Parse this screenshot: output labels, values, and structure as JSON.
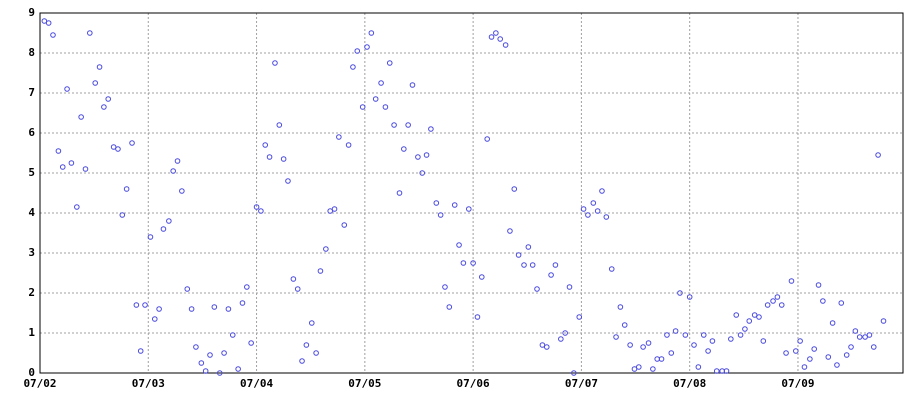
{
  "chart_data": {
    "type": "scatter",
    "color": "#4a4ae0",
    "grid": true,
    "xlim": [
      2,
      9.97
    ],
    "ylim": [
      0,
      9
    ],
    "xticks": [
      {
        "value": 2,
        "label": "07/02"
      },
      {
        "value": 3,
        "label": "07/03"
      },
      {
        "value": 4,
        "label": "07/04"
      },
      {
        "value": 5,
        "label": "07/05"
      },
      {
        "value": 6,
        "label": "07/06"
      },
      {
        "value": 7,
        "label": "07/07"
      },
      {
        "value": 8,
        "label": "07/08"
      },
      {
        "value": 9,
        "label": "07/09"
      }
    ],
    "yticks": [
      0,
      1,
      2,
      3,
      4,
      5,
      6,
      7,
      8,
      9
    ],
    "x": [
      2.04,
      2.08,
      2.12,
      2.17,
      2.21,
      2.25,
      2.29,
      2.34,
      2.38,
      2.42,
      2.46,
      2.51,
      2.55,
      2.59,
      2.63,
      2.68,
      2.72,
      2.76,
      2.8,
      2.85,
      2.89,
      2.93,
      2.97,
      3.02,
      3.06,
      3.1,
      3.14,
      3.19,
      3.23,
      3.27,
      3.31,
      3.36,
      3.4,
      3.44,
      3.49,
      3.53,
      3.57,
      3.61,
      3.66,
      3.7,
      3.74,
      3.78,
      3.83,
      3.87,
      3.91,
      3.95,
      4.0,
      4.04,
      4.08,
      4.12,
      4.17,
      4.21,
      4.25,
      4.29,
      4.34,
      4.38,
      4.42,
      4.46,
      4.51,
      4.55,
      4.59,
      4.64,
      4.68,
      4.72,
      4.76,
      4.81,
      4.85,
      4.89,
      4.93,
      4.98,
      5.02,
      5.06,
      5.1,
      5.15,
      5.19,
      5.23,
      5.27,
      5.32,
      5.36,
      5.4,
      5.44,
      5.49,
      5.53,
      5.57,
      5.61,
      5.66,
      5.7,
      5.74,
      5.78,
      5.83,
      5.87,
      5.91,
      5.96,
      6.0,
      6.04,
      6.08,
      6.13,
      6.17,
      6.21,
      6.25,
      6.3,
      6.34,
      6.38,
      6.42,
      6.47,
      6.51,
      6.55,
      6.59,
      6.64,
      6.68,
      6.72,
      6.76,
      6.81,
      6.85,
      6.89,
      6.93,
      6.98,
      7.02,
      7.06,
      7.11,
      7.15,
      7.19,
      7.23,
      7.28,
      7.32,
      7.36,
      7.4,
      7.45,
      7.49,
      7.53,
      7.57,
      7.62,
      7.66,
      7.7,
      7.74,
      7.79,
      7.83,
      7.87,
      7.91,
      7.96,
      8.0,
      8.04,
      8.08,
      8.13,
      8.17,
      8.21,
      8.25,
      8.3,
      8.34,
      8.38,
      8.43,
      8.47,
      8.51,
      8.55,
      8.6,
      8.64,
      8.68,
      8.72,
      8.77,
      8.81,
      8.85,
      8.89,
      8.94,
      8.98,
      9.02,
      9.06,
      9.11,
      9.15,
      9.19,
      9.23,
      9.28,
      9.32,
      9.36,
      9.4,
      9.45,
      9.49,
      9.53,
      9.57,
      9.62,
      9.66,
      9.7,
      9.74,
      9.79
    ],
    "values": [
      8.8,
      8.75,
      8.45,
      5.55,
      5.15,
      7.1,
      5.25,
      4.15,
      6.4,
      5.1,
      8.5,
      7.25,
      7.65,
      6.65,
      6.85,
      5.65,
      5.6,
      3.95,
      4.6,
      5.75,
      1.7,
      0.55,
      1.7,
      3.4,
      1.35,
      1.6,
      3.6,
      3.8,
      5.05,
      5.3,
      4.55,
      2.1,
      1.6,
      0.65,
      0.25,
      0.05,
      0.45,
      1.65,
      0,
      0.5,
      1.6,
      0.95,
      0.1,
      1.75,
      2.15,
      0.75,
      4.15,
      4.05,
      5.7,
      5.4,
      7.75,
      6.2,
      5.35,
      4.8,
      2.35,
      2.1,
      0.3,
      0.7,
      1.25,
      0.5,
      2.55,
      3.1,
      4.05,
      4.1,
      5.9,
      3.7,
      5.7,
      7.65,
      8.05,
      6.65,
      8.15,
      8.5,
      6.85,
      7.25,
      6.65,
      7.75,
      6.2,
      4.5,
      5.6,
      6.2,
      7.2,
      5.4,
      5.0,
      5.45,
      6.1,
      4.25,
      3.95,
      2.15,
      1.65,
      4.2,
      3.2,
      2.75,
      4.1,
      2.75,
      1.4,
      2.4,
      5.85,
      8.4,
      8.5,
      8.35,
      8.2,
      3.55,
      4.6,
      2.95,
      2.7,
      3.15,
      2.7,
      2.1,
      0.7,
      0.65,
      2.45,
      2.7,
      0.85,
      1.0,
      2.15,
      0,
      1.4,
      4.1,
      3.95,
      4.25,
      4.05,
      4.55,
      3.9,
      2.6,
      0.9,
      1.65,
      1.2,
      0.7,
      0.1,
      0.15,
      0.65,
      0.75,
      0.1,
      0.35,
      0.35,
      0.95,
      0.5,
      1.05,
      2.0,
      0.95,
      1.9,
      0.7,
      0.15,
      0.95,
      0.55,
      0.8,
      0.05,
      0.05,
      0.05,
      0.85,
      1.45,
      0.95,
      1.1,
      1.3,
      1.45,
      1.4,
      0.8,
      1.7,
      1.8,
      1.9,
      1.7,
      0.5,
      2.3,
      0.55,
      0.8,
      0.15,
      0.35,
      0.6,
      2.2,
      1.8,
      0.4,
      1.25,
      0.2,
      1.75,
      0.45,
      0.65,
      1.05,
      0.9,
      0.9,
      0.95,
      0.65,
      5.45,
      1.3
    ]
  }
}
